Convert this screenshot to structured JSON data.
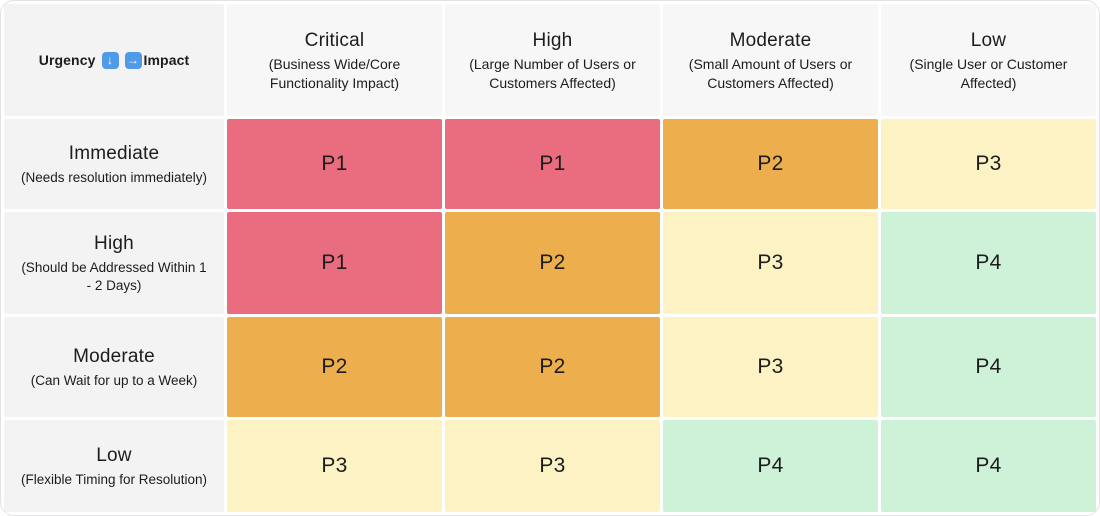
{
  "matrix": {
    "corner": {
      "urgency_label": "Urgency",
      "impact_label": "Impact",
      "down_arrow_glyph": "↓",
      "right_arrow_glyph": "→"
    },
    "columns": [
      {
        "title": "Critical",
        "subtitle": "(Business Wide/Core Functionality Impact)"
      },
      {
        "title": "High",
        "subtitle": "(Large Number of Users or Customers Affected)"
      },
      {
        "title": "Moderate",
        "subtitle": "(Small Amount of Users or Customers Affected)"
      },
      {
        "title": "Low",
        "subtitle": "(Single User or Customer Affected)"
      }
    ],
    "rows": [
      {
        "title": "Immediate",
        "subtitle": "(Needs resolution immediately)",
        "cells": [
          "P1",
          "P1",
          "P2",
          "P3"
        ]
      },
      {
        "title": "High",
        "subtitle": "(Should be Addressed Within 1 - 2 Days)",
        "cells": [
          "P1",
          "P2",
          "P3",
          "P4"
        ]
      },
      {
        "title": "Moderate",
        "subtitle": "(Can Wait for up to a Week)",
        "cells": [
          "P2",
          "P2",
          "P3",
          "P4"
        ]
      },
      {
        "title": "Low",
        "subtitle": "(Flexible Timing for Resolution)",
        "cells": [
          "P3",
          "P3",
          "P4",
          "P4"
        ]
      }
    ],
    "colors": {
      "P1": "#e96d7f",
      "P2": "#edae4d",
      "P3": "#fcf2c3",
      "P4": "#cdf2d7",
      "column_header_bg": "#f7f7f8",
      "row_label_bg": "#f3f3f4",
      "arrow_icon_bg": "#4f9be8"
    }
  }
}
